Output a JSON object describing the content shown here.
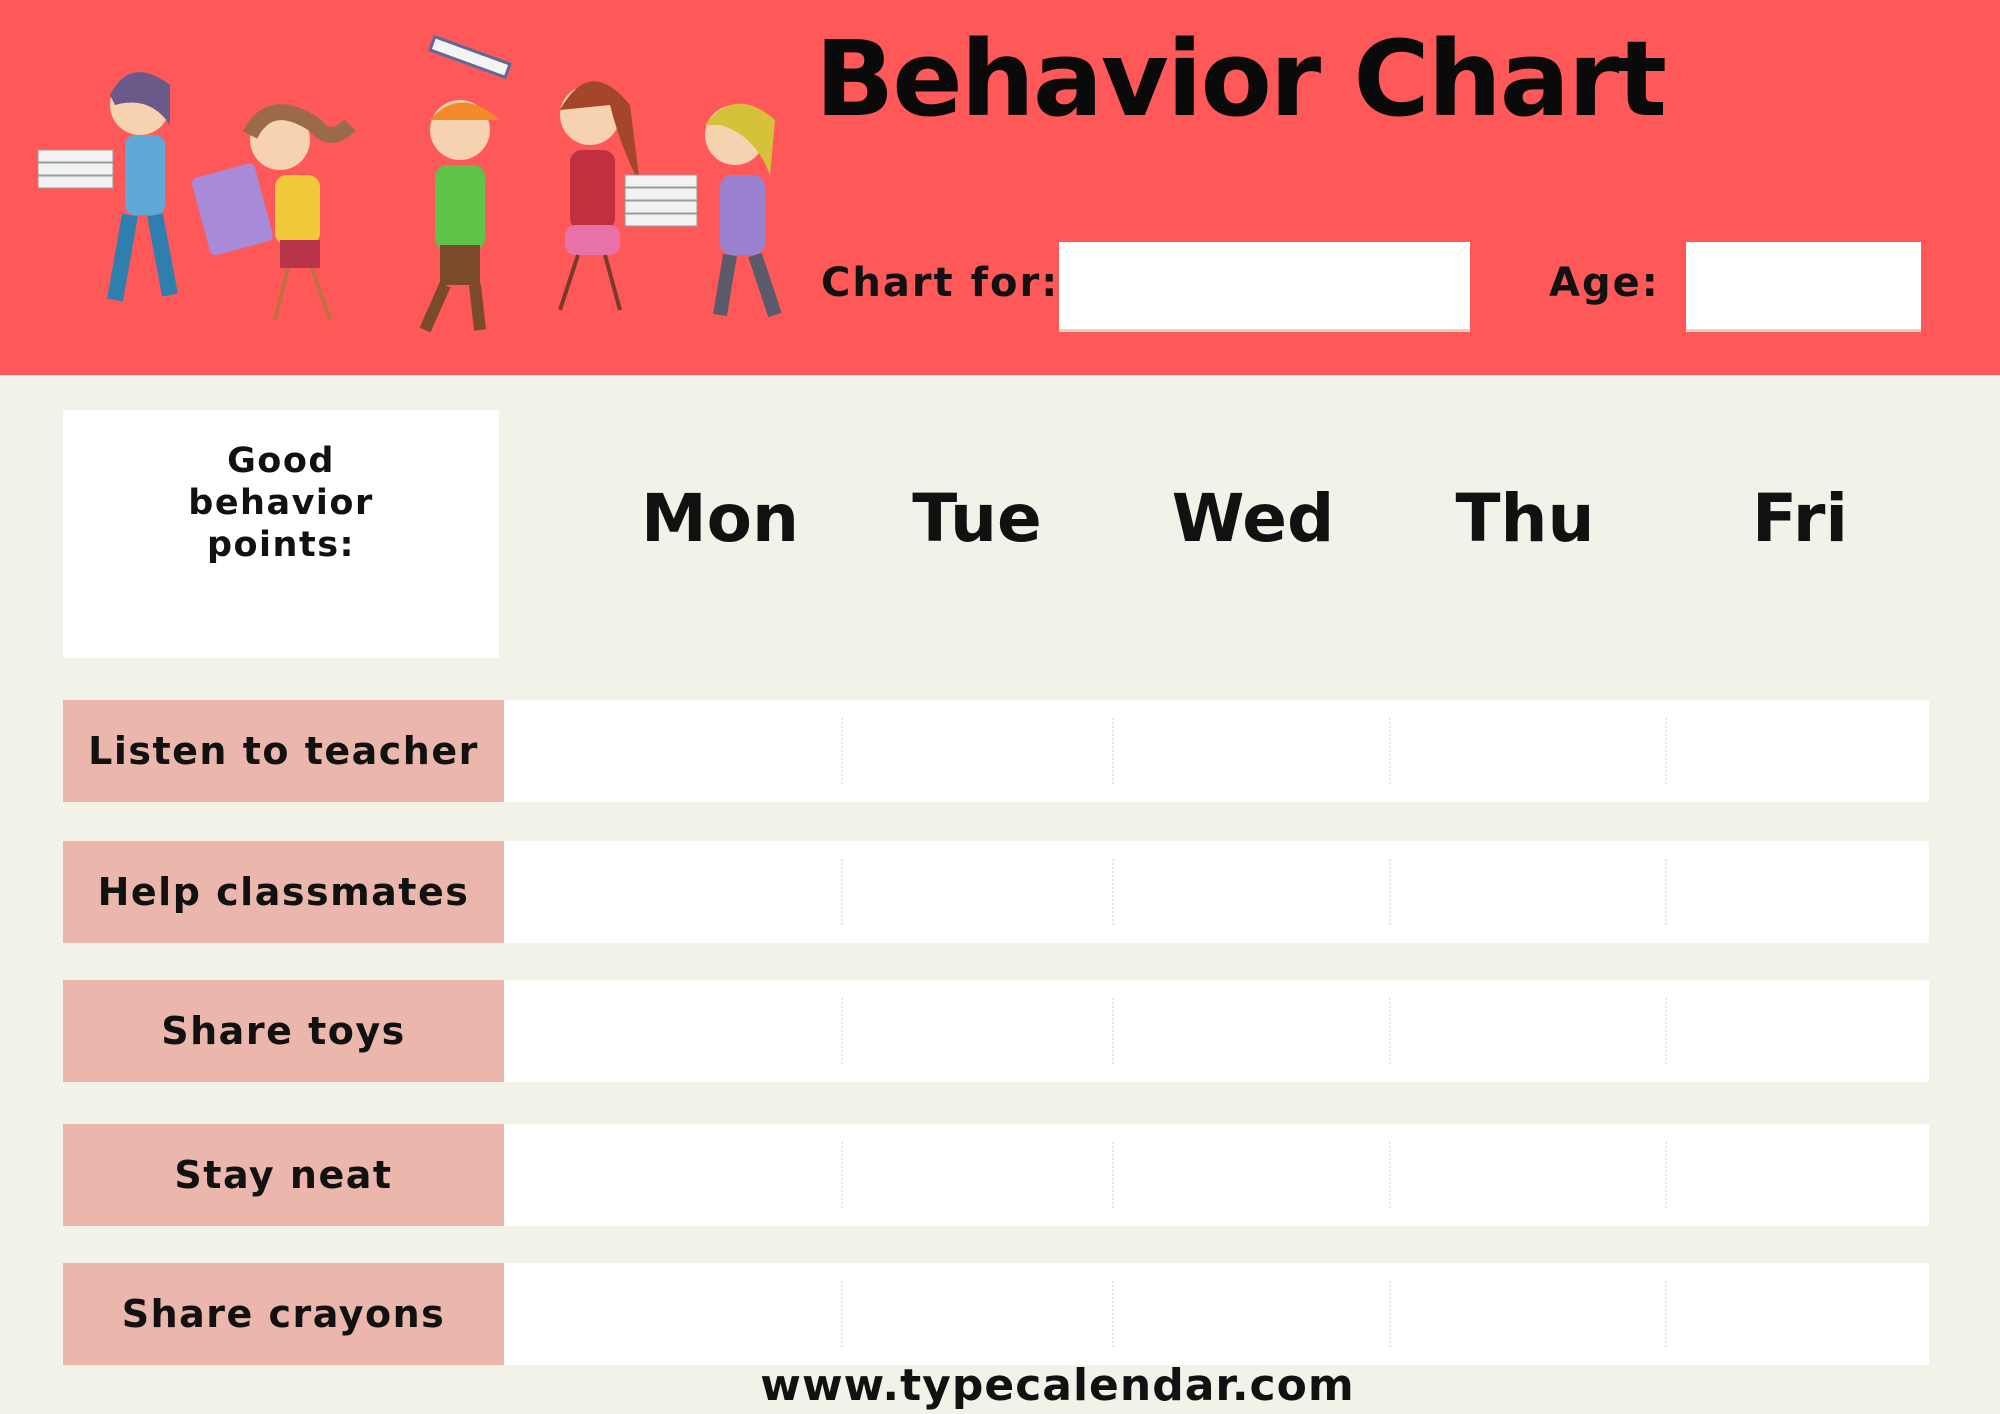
{
  "header": {
    "title": "Behavior Chart",
    "chart_for_label": "Chart for:",
    "chart_for_value": "",
    "age_label": "Age:",
    "age_value": "",
    "illustration": "children-walking-with-books"
  },
  "points_box": {
    "label": "Good behavior points:"
  },
  "days": [
    "Mon",
    "Tue",
    "Wed",
    "Thu",
    "Fri"
  ],
  "behaviors": [
    "Listen to teacher",
    "Help classmates",
    "Share toys",
    "Stay neat",
    "Share crayons"
  ],
  "footer": {
    "website": "www.typecalendar.com"
  },
  "colors": {
    "header": "#FF5858",
    "background": "#F3F2E9",
    "behavior_cell": "#EBB6AC"
  }
}
